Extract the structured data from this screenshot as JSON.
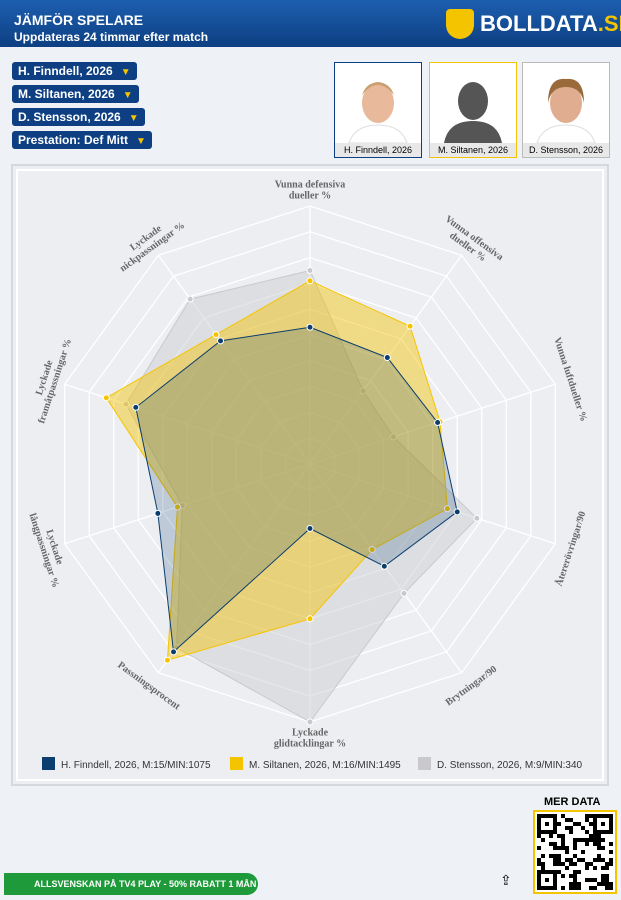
{
  "header": {
    "title": "JÄMFÖR SPELARE",
    "subtitle": "Uppdateras 24 timmar efter match",
    "logo": "BOLLDATA",
    "logo_suffix": ".SE"
  },
  "selectors": [
    "H. Finndell, 2026",
    "M. Siltanen, 2026",
    "D. Stensson, 2026",
    "Prestation: Def Mitt"
  ],
  "players": [
    "H. Finndell, 2026",
    "M. Siltanen, 2026",
    "D. Stensson, 2026"
  ],
  "chart_data": {
    "type": "radar",
    "categories": [
      "Vunna defensiva\ndueller %",
      "Vunna offensiva\ndueller %",
      "Vunna luftdueller %",
      "Återerövringar/90",
      "Brytningar/90",
      "Lyckade\nglidtacklingar %",
      "Passningsprocent",
      "Lyckade\nlångpassningar %",
      "Lyckade\nframåtpassningar %",
      "Lyckade\nnickpassningar %"
    ],
    "rlim": [
      0,
      100
    ],
    "rticks": [
      10,
      20,
      30,
      40,
      50,
      60,
      70,
      80,
      90,
      100
    ],
    "series": [
      {
        "name": "D. Stensson, 2026, M:9/MIN:340",
        "color": "#c9c9cd",
        "values": [
          75,
          35,
          34,
          68,
          62,
          100,
          88,
          52,
          75,
          79
        ]
      },
      {
        "name": "M. Siltanen, 2026, M:16/MIN:1495",
        "color": "#f5c400",
        "values": [
          71,
          66,
          53,
          56,
          41,
          60,
          94,
          54,
          83,
          62
        ]
      },
      {
        "name": "H. Finndell, 2026, M:15/MIN:1075",
        "color": "#0b3d6e",
        "values": [
          53,
          51,
          52,
          60,
          49,
          25,
          90,
          62,
          71,
          59
        ]
      }
    ]
  },
  "footer": {
    "more": "MER DATA",
    "banner": "ALLSVENSKAN PÅ TV4 PLAY - 50% RABATT 1 MÅN"
  }
}
